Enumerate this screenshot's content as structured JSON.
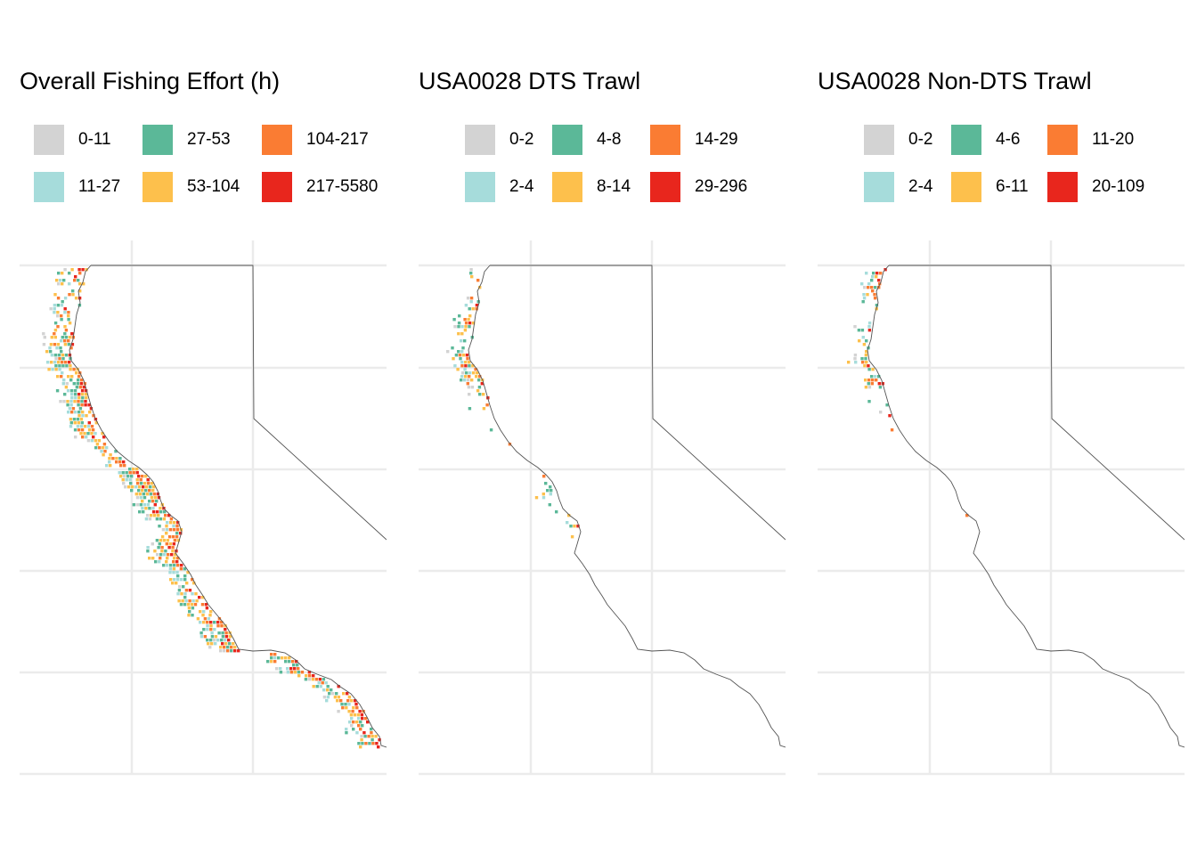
{
  "panels": [
    {
      "title": "Overall Fishing Effort (h)",
      "legend": [
        "0-11",
        "11-27",
        "27-53",
        "53-104",
        "104-217",
        "217-5580"
      ],
      "effort": [
        0.24,
        0.19,
        0.2,
        0.22,
        0.35,
        0.32,
        0.3,
        0.28,
        0.34,
        0.3,
        0.32,
        0.31,
        0.28,
        0.36,
        0.3,
        0.28,
        0.22,
        0.3
      ]
    },
    {
      "title": "USA0028 DTS Trawl",
      "legend": [
        "0-2",
        "2-4",
        "4-8",
        "8-14",
        "14-29",
        "29-296"
      ],
      "effort": [
        0.0,
        0.05,
        0.2,
        0.15,
        0.3,
        0.1,
        0.04,
        0.02,
        0.06,
        0.06,
        0.0,
        0.0,
        0.0,
        0.0,
        0.0,
        0.0,
        0.0,
        0.0
      ]
    },
    {
      "title": "USA0028 Non-DTS Trawl",
      "legend": [
        "0-2",
        "2-4",
        "4-6",
        "6-11",
        "11-20",
        "20-109"
      ],
      "effort": [
        0.15,
        0.2,
        0.12,
        0.12,
        0.15,
        0.08,
        0.01,
        0.0,
        0.0,
        0.03,
        0.0,
        0.0,
        0.0,
        0.0,
        0.0,
        0.0,
        0.0,
        0.0
      ]
    }
  ],
  "colors": {
    "bins": [
      "#d3d3d3",
      "#a6dcdb",
      "#5bb898",
      "#fdc04c",
      "#fa7c33",
      "#e8261d"
    ],
    "gridline": "#ebebeb",
    "coastline": "#555555",
    "background": "#ffffff"
  }
}
